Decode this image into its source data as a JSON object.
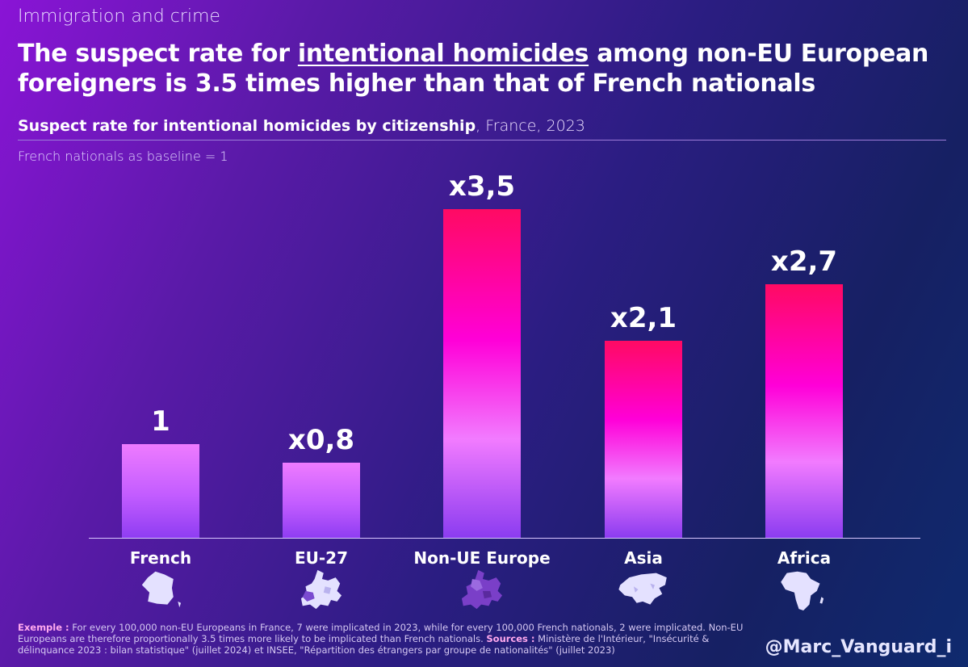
{
  "header": {
    "kicker": "Immigration and crime",
    "headline_part1": "The suspect rate for ",
    "headline_underlined": "intentional homicides",
    "headline_part2": " among non-EU European foreigners is 3.5 times higher than that of French nationals",
    "subtitle_bold": "Suspect rate for intentional homicides by citizenship",
    "subtitle_rest": ", France, 2023",
    "baseline_note": "French nationals as baseline = 1"
  },
  "chart_data": {
    "type": "bar",
    "title": "Suspect rate for intentional homicides by citizenship, France, 2023",
    "ylabel": "French nationals as baseline = 1",
    "xlabel": "",
    "ylim": [
      0,
      3.5
    ],
    "categories": [
      "French",
      "EU-27",
      "Non-UE Europe",
      "Asia",
      "Africa"
    ],
    "values": [
      1,
      0.8,
      3.5,
      2.1,
      2.7
    ],
    "labels": [
      "1",
      "x0,8",
      "x3,5",
      "x2,1",
      "x2,7"
    ],
    "map_icons": [
      "france-map-icon",
      "eu27-map-icon",
      "non-eu-europe-map-icon",
      "asia-map-icon",
      "africa-map-icon"
    ]
  },
  "colors": {
    "bar_low": "#c25cff",
    "bar_high": "#ff0a63"
  },
  "footer": {
    "example_label": "Exemple :",
    "example_text": " For every 100,000 non-EU Europeans in France, 7 were implicated in 2023, while for every 100,000 French nationals, 2 were implicated. Non-EU Europeans are therefore proportionally 3.5 times more likely to be implicated than French nationals. ",
    "sources_label": "Sources :",
    "sources_text": " Ministère de l'Intérieur, \"Insécurité & délinquance 2023 : bilan statistique\" (juillet 2024) et INSEE, \"Répartition des étrangers par groupe de nationalités\" (juillet 2023)",
    "handle": "@Marc_Vanguard_i"
  }
}
